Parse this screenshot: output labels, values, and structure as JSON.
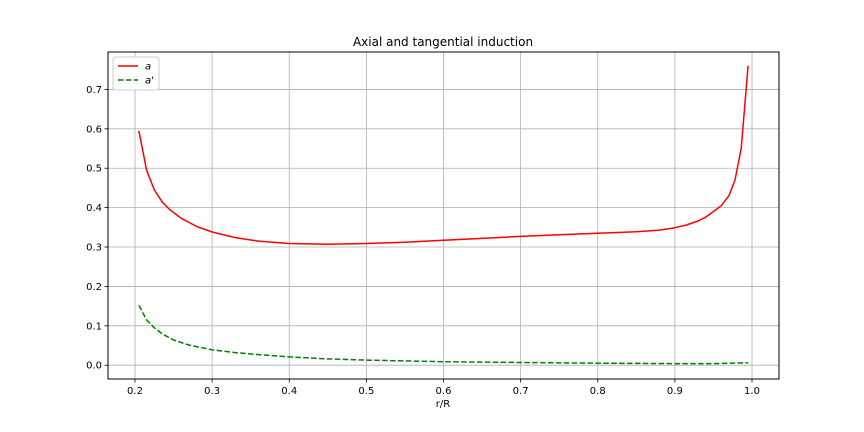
{
  "chart_data": {
    "type": "line",
    "title": "Axial and tangential induction",
    "xlabel": "r/R",
    "ylabel": "",
    "xlim": [
      0.165,
      1.035
    ],
    "ylim": [
      -0.035,
      0.795
    ],
    "xticks": [
      "0.2",
      "0.3",
      "0.4",
      "0.5",
      "0.6",
      "0.7",
      "0.8",
      "0.9",
      "1.0"
    ],
    "yticks": [
      "0.0",
      "0.1",
      "0.2",
      "0.3",
      "0.4",
      "0.5",
      "0.6",
      "0.7"
    ],
    "grid": true,
    "legend_position": "top-left",
    "series": [
      {
        "name": "a",
        "color": "#ff0000",
        "style": "solid",
        "x": [
          0.205,
          0.215,
          0.225,
          0.235,
          0.245,
          0.26,
          0.28,
          0.3,
          0.33,
          0.36,
          0.4,
          0.45,
          0.5,
          0.55,
          0.6,
          0.65,
          0.7,
          0.75,
          0.8,
          0.85,
          0.88,
          0.9,
          0.915,
          0.93,
          0.94,
          0.95,
          0.96,
          0.97,
          0.978,
          0.986,
          0.995
        ],
        "values": [
          0.595,
          0.495,
          0.445,
          0.415,
          0.395,
          0.373,
          0.352,
          0.338,
          0.324,
          0.315,
          0.309,
          0.307,
          0.309,
          0.312,
          0.317,
          0.322,
          0.327,
          0.331,
          0.335,
          0.339,
          0.343,
          0.349,
          0.356,
          0.366,
          0.376,
          0.39,
          0.405,
          0.43,
          0.47,
          0.55,
          0.76
        ]
      },
      {
        "name": "a'",
        "color": "#008000",
        "style": "dashed",
        "x": [
          0.205,
          0.215,
          0.225,
          0.235,
          0.25,
          0.27,
          0.3,
          0.33,
          0.36,
          0.4,
          0.45,
          0.5,
          0.6,
          0.7,
          0.8,
          0.9,
          0.95,
          0.995
        ],
        "values": [
          0.152,
          0.115,
          0.095,
          0.08,
          0.064,
          0.051,
          0.039,
          0.032,
          0.027,
          0.021,
          0.016,
          0.013,
          0.009,
          0.007,
          0.005,
          0.004,
          0.004,
          0.006
        ]
      }
    ]
  }
}
